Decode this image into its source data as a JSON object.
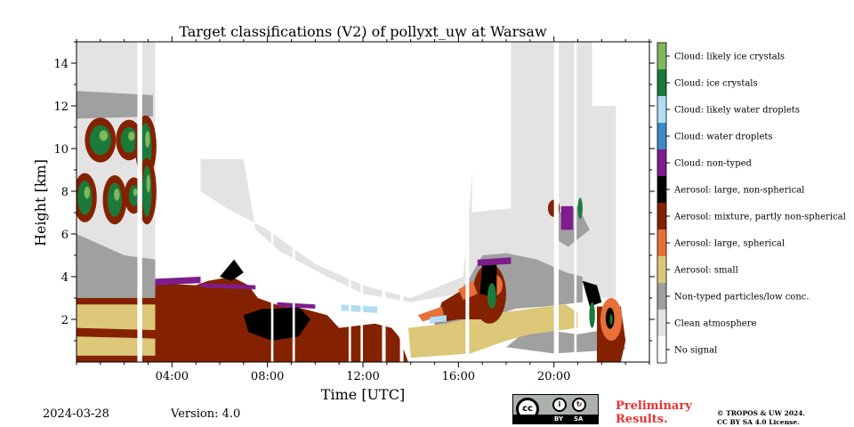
{
  "chart_data": {
    "type": "heatmap",
    "title": "Target classifications (V2) of pollyxt_uw at Warsaw",
    "xlabel": "Time [UTC]",
    "ylabel": "Height [km]",
    "xlim": [
      0,
      24
    ],
    "ylim": [
      0,
      15
    ],
    "x_ticks": [
      4,
      8,
      12,
      16,
      20
    ],
    "x_tick_labels": [
      "04:00",
      "08:00",
      "12:00",
      "16:00",
      "20:00"
    ],
    "y_ticks": [
      2,
      4,
      6,
      8,
      10,
      12,
      14
    ],
    "y_tick_labels": [
      "2",
      "4",
      "6",
      "8",
      "10",
      "12",
      "14"
    ],
    "classes": [
      {
        "label": "No signal",
        "color": "#ffffff"
      },
      {
        "label": "Clean atmosphere",
        "color": "#e3e3e3"
      },
      {
        "label": "Non-typed particles/low conc.",
        "color": "#a0a0a0"
      },
      {
        "label": "Aerosol: small",
        "color": "#dcc878"
      },
      {
        "label": "Aerosol: large, spherical",
        "color": "#e8703a"
      },
      {
        "label": "Aerosol: mixture, partly non-spherical",
        "color": "#842200"
      },
      {
        "label": "Aerosol: large, non-spherical",
        "color": "#000000"
      },
      {
        "label": "Cloud: non-typed",
        "color": "#7e1c8c"
      },
      {
        "label": "Cloud: water droplets",
        "color": "#3a8bc6"
      },
      {
        "label": "Cloud: likely water droplets",
        "color": "#b2dcf6"
      },
      {
        "label": "Cloud: ice crystals",
        "color": "#1a7a3a"
      },
      {
        "label": "Cloud: likely ice crystals",
        "color": "#80b860"
      }
    ]
  },
  "footer": {
    "date": "2024-03-28",
    "version": "Version: 4.0",
    "preliminary_line1": "Preliminary",
    "preliminary_line2": "Results.",
    "copyright_line1": "© TROPOS & UW 2024.",
    "copyright_line2": "CC BY SA 4.0 License.",
    "license_badge": {
      "main": "cc",
      "by": "BY",
      "sa": "SA"
    }
  }
}
